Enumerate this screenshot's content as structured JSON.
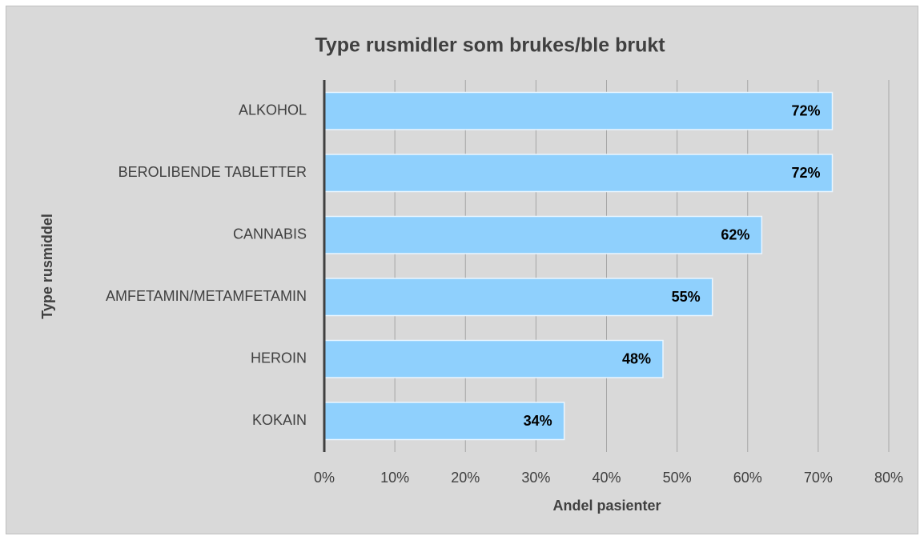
{
  "chart_data": {
    "type": "bar",
    "orientation": "horizontal",
    "title": "Type rusmidler som brukes/ble brukt",
    "x_label": "Andel pasienter",
    "y_label": "Type rusmiddel",
    "categories": [
      "ALKOHOL",
      "BEROLIBENDE TABLETTER",
      "CANNABIS",
      "AMFETAMIN/METAMFETAMIN",
      "HEROIN",
      "KOKAIN"
    ],
    "values": [
      72,
      72,
      62,
      55,
      48,
      34
    ],
    "value_labels": [
      "72%",
      "72%",
      "62%",
      "55%",
      "48%",
      "34%"
    ],
    "color": "#8fd0fd",
    "xlim": [
      0,
      80
    ],
    "xticks": [
      {
        "value": 0,
        "label": "0%"
      },
      {
        "value": 10,
        "label": "10%"
      },
      {
        "value": 20,
        "label": "20%"
      },
      {
        "value": 30,
        "label": "30%"
      },
      {
        "value": 40,
        "label": "40%"
      },
      {
        "value": 50,
        "label": "50%"
      },
      {
        "value": 60,
        "label": "60%"
      },
      {
        "value": 70,
        "label": "70%"
      },
      {
        "value": 80,
        "label": "80%"
      }
    ],
    "grid": true
  }
}
